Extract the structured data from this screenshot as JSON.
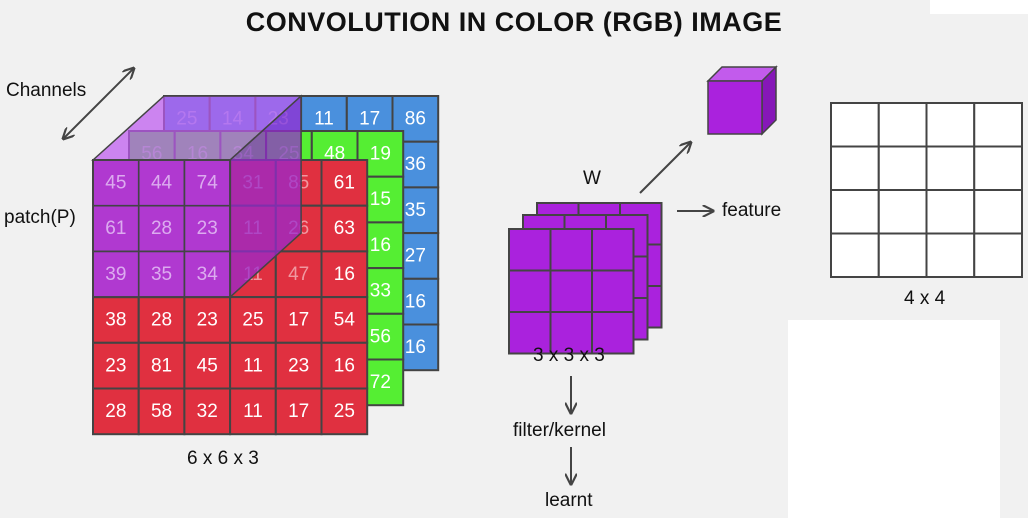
{
  "title": "CONVOLUTION IN COLOR (RGB) IMAGE",
  "labels": {
    "channels": "Channels",
    "patch": "patch(P)",
    "input_dims": "6 x 6 x 3",
    "w": "W",
    "feature": "feature",
    "filter_dims": "3 x 3 x 3",
    "filter_kernel": "filter/kernel",
    "learnt": "learnt",
    "output_dims": "4 x 4"
  },
  "colors": {
    "red": "#e03040",
    "green": "#55ee33",
    "blue": "#4a90dd",
    "purple": "#aa22dd",
    "patch_overlay": "rgba(168,58,228,0.88)",
    "grid_line": "#444444",
    "background": "#f1f1f1"
  },
  "channels": {
    "red": [
      [
        45,
        44,
        74,
        31,
        85,
        61
      ],
      [
        61,
        28,
        23,
        11,
        26,
        63
      ],
      [
        39,
        35,
        34,
        11,
        47,
        16
      ],
      [
        38,
        28,
        23,
        25,
        17,
        54
      ],
      [
        23,
        81,
        45,
        11,
        23,
        16
      ],
      [
        28,
        58,
        32,
        11,
        17,
        25
      ]
    ],
    "green_top_row": [
      56,
      16,
      34,
      25,
      48,
      19
    ],
    "green_right_column": [
      19,
      15,
      16,
      33,
      56,
      72
    ],
    "blue_top_row": [
      25,
      14,
      23,
      11,
      17,
      86
    ],
    "blue_right_column": [
      86,
      36,
      35,
      27,
      16,
      16
    ]
  }
}
